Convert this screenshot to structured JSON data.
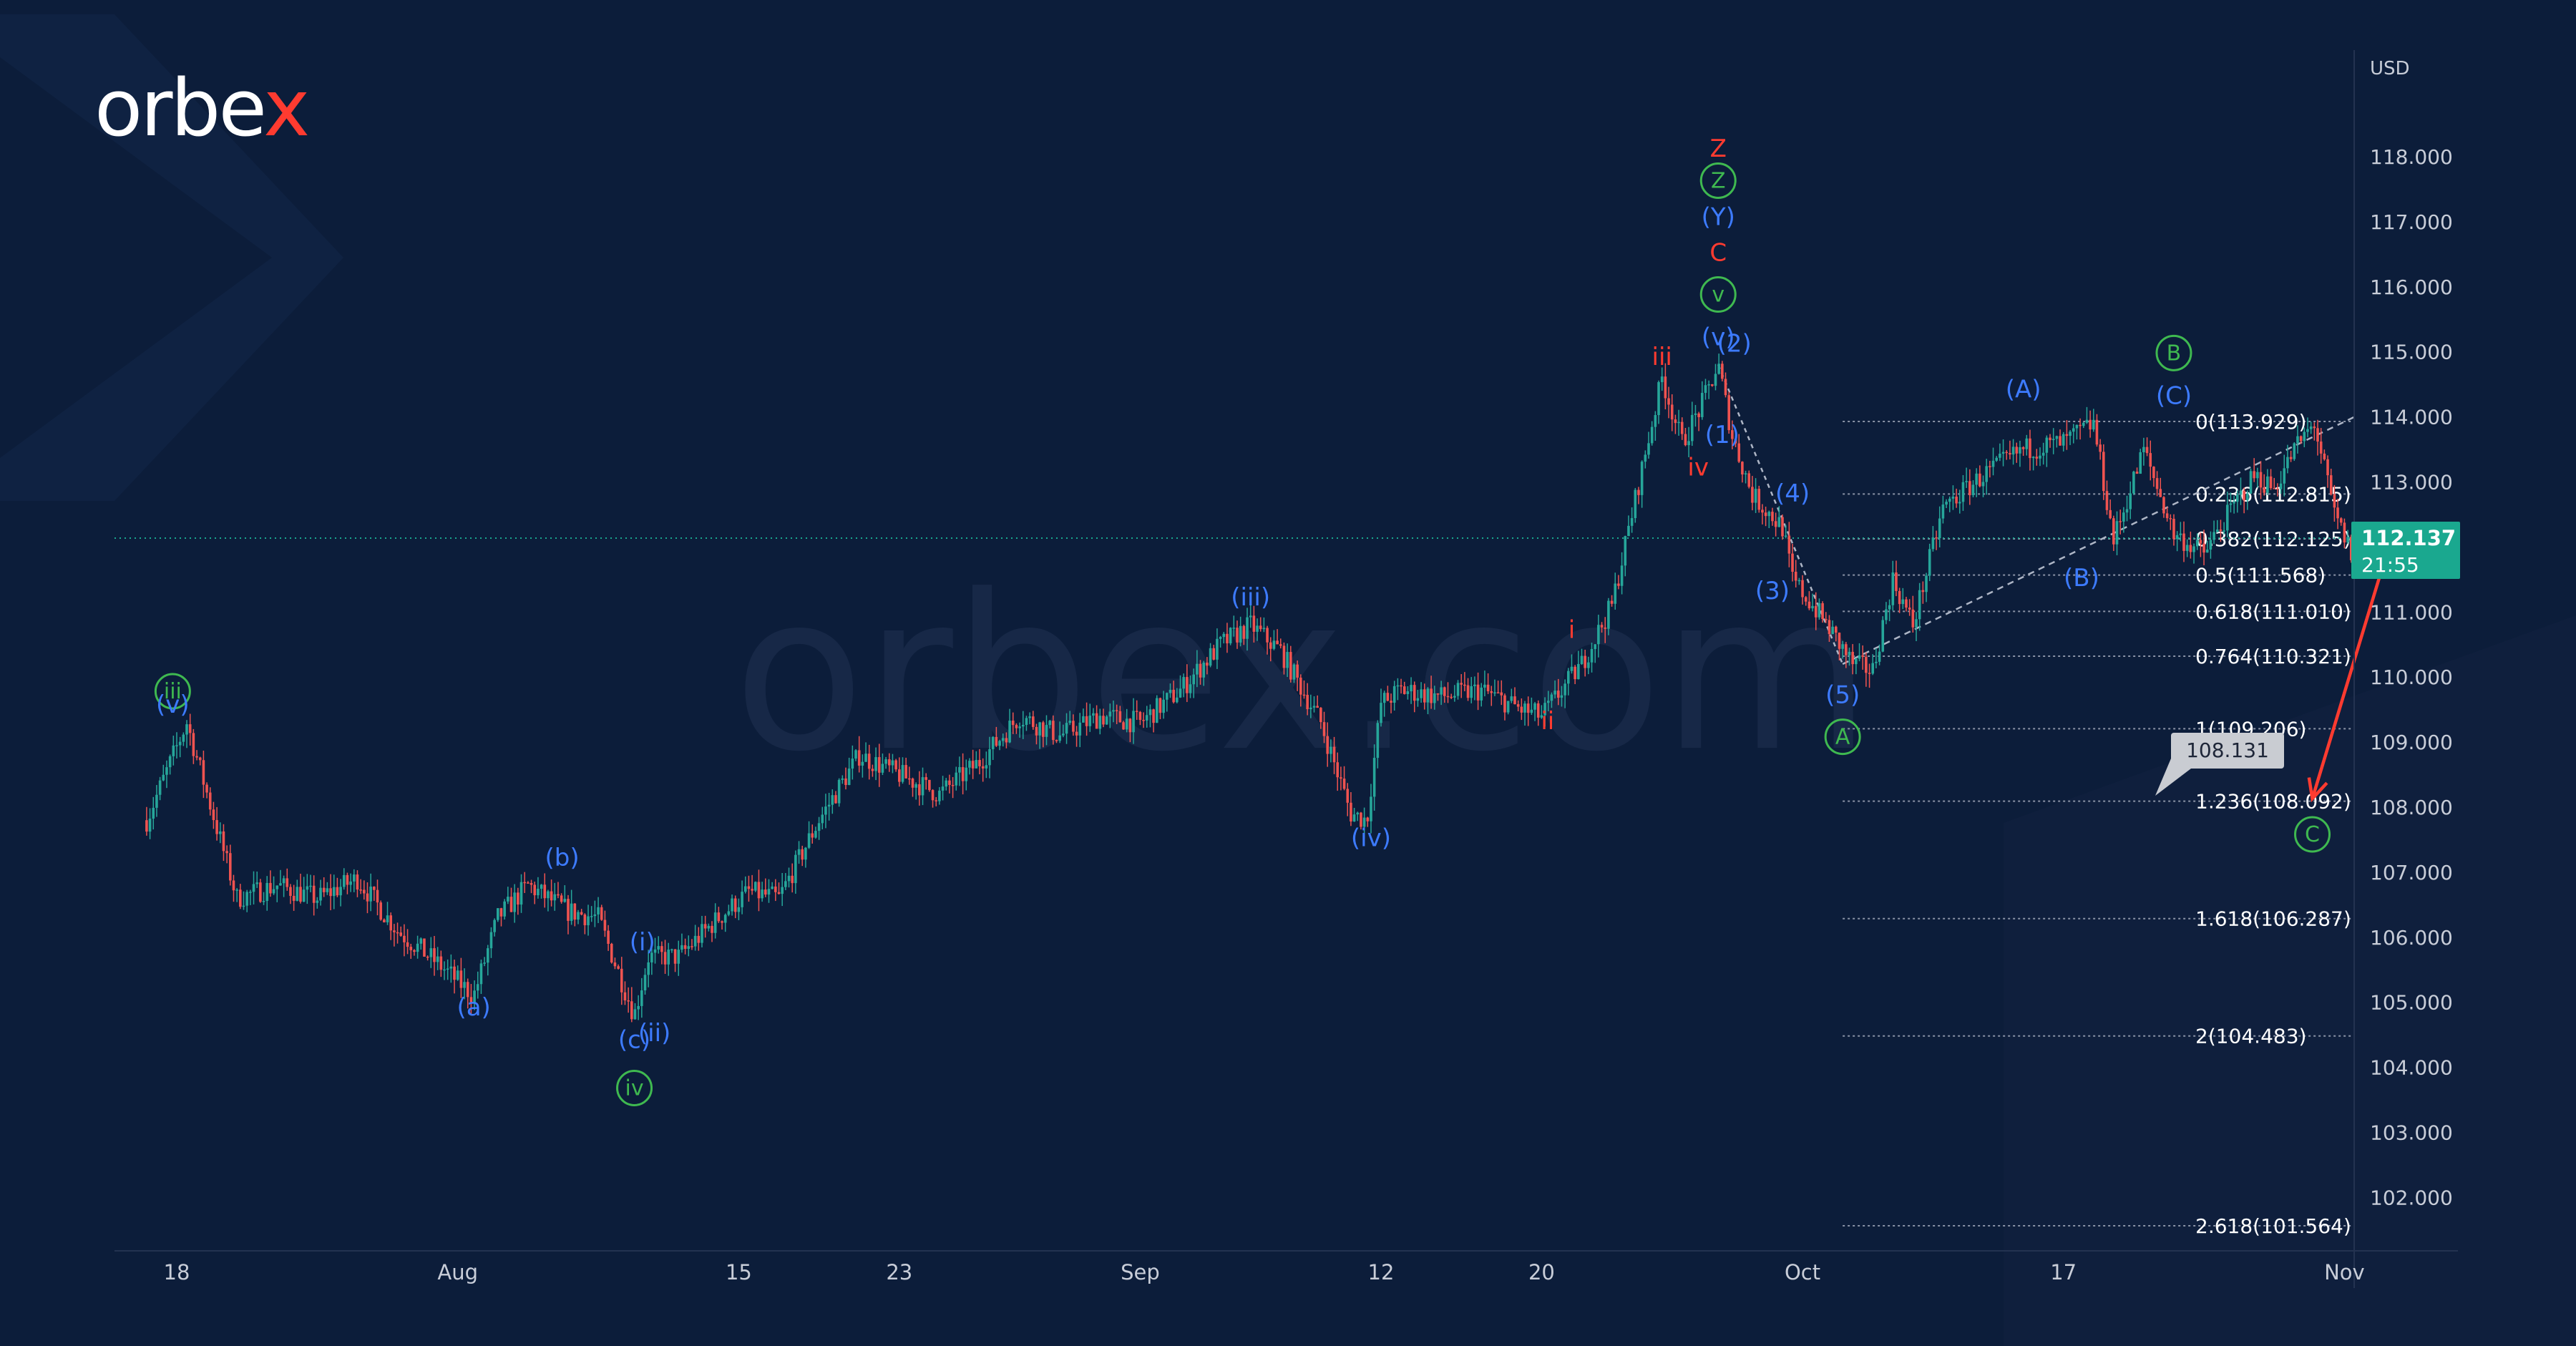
{
  "brand": {
    "logo_main": "orbe",
    "logo_x": "x",
    "watermark": "orbex.com"
  },
  "colors": {
    "background": "#0c1d3a",
    "up_candle": "#26a69a",
    "down_candle": "#ef5350",
    "wave_blue": "#3d7bff",
    "wave_green": "#3fb950",
    "wave_red": "#ff3b30",
    "fib_line": "#8a93a6",
    "arrow": "#ff3b30",
    "price_badge": "#1aa88f"
  },
  "axis": {
    "currency": "USD"
  },
  "current_price": {
    "value": "112.137",
    "timer": "21:55"
  },
  "target_label": "108.131",
  "chart_data": {
    "type": "candlestick",
    "title": "",
    "xlabel": "",
    "ylabel": "USD",
    "ylim": [
      100.8,
      119.0
    ],
    "grid": false,
    "y_ticks": [
      "118.000",
      "117.000",
      "116.000",
      "115.000",
      "114.000",
      "113.000",
      "112.000",
      "111.000",
      "110.000",
      "109.000",
      "108.000",
      "107.000",
      "106.000",
      "105.000",
      "104.000",
      "103.000",
      "102.000"
    ],
    "y_tick_values": [
      118,
      117,
      116,
      115,
      114,
      113,
      112,
      111,
      110,
      109,
      108,
      107,
      106,
      105,
      104,
      103,
      102
    ],
    "x_ticks": [
      "18",
      "Aug",
      "15",
      "23",
      "Sep",
      "12",
      "20",
      "Oct",
      "17",
      "Nov"
    ],
    "x_tick_days": [
      0,
      14,
      28,
      36,
      48,
      60,
      68,
      81,
      94,
      108
    ],
    "price_path": [
      [
        -1.5,
        107.8
      ],
      [
        0.5,
        109.3
      ],
      [
        3,
        106.6
      ],
      [
        5,
        106.8
      ],
      [
        7,
        106.6
      ],
      [
        9,
        106.9
      ],
      [
        11,
        106.1
      ],
      [
        13,
        105.6
      ],
      [
        14.8,
        105.1
      ],
      [
        16,
        106.3
      ],
      [
        17.5,
        106.8
      ],
      [
        19.5,
        106.4
      ],
      [
        21,
        106.3
      ],
      [
        22.8,
        104.8
      ],
      [
        23.5,
        105.7
      ],
      [
        25,
        105.7
      ],
      [
        27,
        106.3
      ],
      [
        28.5,
        106.7
      ],
      [
        30,
        106.6
      ],
      [
        32,
        107.8
      ],
      [
        34,
        108.8
      ],
      [
        36,
        108.5
      ],
      [
        38,
        108.2
      ],
      [
        40,
        108.7
      ],
      [
        42,
        109.4
      ],
      [
        44,
        109.1
      ],
      [
        46,
        109.4
      ],
      [
        48,
        109.3
      ],
      [
        50,
        109.8
      ],
      [
        52,
        110.5
      ],
      [
        53.5,
        110.8
      ],
      [
        55,
        110.4
      ],
      [
        57,
        109.3
      ],
      [
        58.5,
        107.9
      ],
      [
        59.3,
        107.8
      ],
      [
        60,
        109.6
      ],
      [
        61,
        109.8
      ],
      [
        63,
        109.7
      ],
      [
        65,
        109.8
      ],
      [
        67,
        109.5
      ],
      [
        68,
        109.4
      ],
      [
        70,
        110.2
      ],
      [
        71.5,
        111.1
      ],
      [
        72.5,
        112.5
      ],
      [
        74,
        114.6
      ],
      [
        75,
        113.6
      ],
      [
        76,
        114.2
      ],
      [
        76.8,
        114.8
      ],
      [
        77.5,
        113.7
      ],
      [
        78.5,
        112.8
      ],
      [
        80,
        112.3
      ],
      [
        80.5,
        111.5
      ],
      [
        82,
        110.9
      ],
      [
        83.5,
        110.2
      ],
      [
        84.5,
        110.1
      ],
      [
        85.5,
        111.5
      ],
      [
        86.5,
        110.8
      ],
      [
        88,
        112.6
      ],
      [
        90,
        113.1
      ],
      [
        92,
        113.5
      ],
      [
        94,
        113.6
      ],
      [
        95.5,
        113.9
      ],
      [
        96.5,
        112.1
      ],
      [
        98,
        113.5
      ],
      [
        99.5,
        112.2
      ],
      [
        101,
        111.9
      ],
      [
        102,
        112.4
      ],
      [
        103.5,
        113.1
      ],
      [
        104.5,
        112.9
      ],
      [
        105.5,
        113.5
      ],
      [
        106.5,
        113.9
      ],
      [
        107.5,
        112.5
      ],
      [
        108.5,
        111.8
      ],
      [
        109.3,
        112.2
      ],
      [
        110,
        112.1
      ]
    ],
    "candles_per_day": 6,
    "wave_labels": [
      {
        "text": "iii",
        "day": -0.2,
        "price": 109.65,
        "color": "green",
        "circled": true
      },
      {
        "text": "(v)",
        "day": -0.2,
        "price": 109.45,
        "color": "blue",
        "circled": false
      },
      {
        "text": "(a)",
        "day": 14.8,
        "price": 104.8,
        "color": "blue",
        "circled": false
      },
      {
        "text": "(b)",
        "day": 19.2,
        "price": 107.1,
        "color": "blue",
        "circled": false
      },
      {
        "text": "(c)",
        "day": 22.8,
        "price": 104.3,
        "color": "blue",
        "circled": false
      },
      {
        "text": "iv",
        "day": 22.8,
        "price": 103.55,
        "color": "green",
        "circled": true
      },
      {
        "text": "(i)",
        "day": 23.2,
        "price": 105.8,
        "color": "blue",
        "circled": false
      },
      {
        "text": "(ii)",
        "day": 23.8,
        "price": 104.4,
        "color": "blue",
        "circled": false
      },
      {
        "text": "(iii)",
        "day": 53.5,
        "price": 111.1,
        "color": "blue",
        "circled": false
      },
      {
        "text": "(iv)",
        "day": 59.5,
        "price": 107.4,
        "color": "blue",
        "circled": false
      },
      {
        "text": "i",
        "day": 69.5,
        "price": 110.6,
        "color": "red",
        "circled": false
      },
      {
        "text": "ii",
        "day": 68.3,
        "price": 109.2,
        "color": "red",
        "circled": false
      },
      {
        "text": "iii",
        "day": 74,
        "price": 114.8,
        "color": "red",
        "circled": false
      },
      {
        "text": "iv",
        "day": 75.8,
        "price": 113.1,
        "color": "red",
        "circled": false
      },
      {
        "text": "(1)",
        "day": 77.0,
        "price": 113.6,
        "color": "blue",
        "circled": false
      },
      {
        "text": "(2)",
        "day": 77.6,
        "price": 115.0,
        "color": "blue",
        "circled": false
      },
      {
        "text": "(v)",
        "day": 76.8,
        "price": 115.1,
        "color": "blue",
        "circled": false
      },
      {
        "text": "v",
        "day": 76.8,
        "price": 115.75,
        "color": "green",
        "circled": true
      },
      {
        "text": "C",
        "day": 76.8,
        "price": 116.4,
        "color": "red",
        "circled": false
      },
      {
        "text": "(Y)",
        "day": 76.8,
        "price": 116.95,
        "color": "blue",
        "circled": false
      },
      {
        "text": "Z",
        "day": 76.8,
        "price": 117.5,
        "color": "green",
        "circled": true
      },
      {
        "text": "Z",
        "day": 76.8,
        "price": 118.0,
        "color": "red",
        "circled": false
      },
      {
        "text": "(4)",
        "day": 80.5,
        "price": 112.7,
        "color": "blue",
        "circled": false
      },
      {
        "text": "(3)",
        "day": 79.5,
        "price": 111.2,
        "color": "blue",
        "circled": false
      },
      {
        "text": "(5)",
        "day": 83.0,
        "price": 109.6,
        "color": "blue",
        "circled": false
      },
      {
        "text": "A",
        "day": 83.0,
        "price": 108.95,
        "color": "green",
        "circled": true
      },
      {
        "text": "(A)",
        "day": 92.0,
        "price": 114.3,
        "color": "blue",
        "circled": false
      },
      {
        "text": "(B)",
        "day": 94.9,
        "price": 111.4,
        "color": "blue",
        "circled": false
      },
      {
        "text": "B",
        "day": 99.5,
        "price": 114.85,
        "color": "green",
        "circled": true
      },
      {
        "text": "(C)",
        "day": 99.5,
        "price": 114.2,
        "color": "blue",
        "circled": false
      },
      {
        "text": "C",
        "day": 106.4,
        "price": 107.45,
        "color": "green",
        "circled": true
      }
    ],
    "fib_levels": [
      {
        "label": "0(113.929)",
        "price": 113.929
      },
      {
        "label": "0.236(112.815)",
        "price": 112.815
      },
      {
        "label": "0.382(112.125)",
        "price": 112.125
      },
      {
        "label": "0.5(111.568)",
        "price": 111.568
      },
      {
        "label": "0.618(111.010)",
        "price": 111.01
      },
      {
        "label": "0.764(110.321)",
        "price": 110.321
      },
      {
        "label": "1(109.206)",
        "price": 109.206
      },
      {
        "label": "1.236(108.092)",
        "price": 108.092
      },
      {
        "label": "1.618(106.287)",
        "price": 106.287
      },
      {
        "label": "2(104.483)",
        "price": 104.483
      },
      {
        "label": "2.618(101.564)",
        "price": 101.564
      }
    ],
    "fib_x_range_days": [
      83.0,
      108.5
    ],
    "trendline": [
      [
        83.0,
        110.2
      ],
      [
        108.5,
        114.0
      ]
    ],
    "projection_arrow": [
      [
        110.2,
        112.0
      ],
      [
        106.4,
        108.13
      ]
    ],
    "current_price_line": 112.137,
    "dotted_line": [
      [
        76.8,
        114.8
      ],
      [
        83.0,
        110.2
      ]
    ]
  }
}
